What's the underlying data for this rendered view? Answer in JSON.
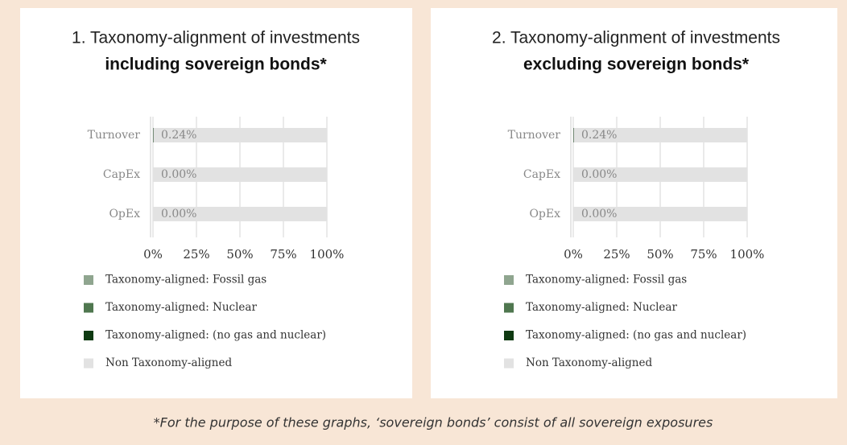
{
  "chart_data": [
    {
      "type": "bar",
      "orientation": "horizontal",
      "stacked": true,
      "title": "1. Taxonomy-alignment of investments",
      "subtitle": "including sovereign bonds*",
      "categories": [
        "Turnover",
        "CapEx",
        "OpEx"
      ],
      "series": [
        {
          "name": "Taxonomy-aligned: Fossil gas",
          "color": "#8fa58f",
          "values": [
            0,
            0,
            0
          ]
        },
        {
          "name": "Taxonomy-aligned: Nuclear",
          "color": "#4f774f",
          "values": [
            0,
            0,
            0
          ]
        },
        {
          "name": "Taxonomy-aligned: (no gas and nuclear)",
          "color": "#0f3a12",
          "values": [
            0.24,
            0,
            0
          ],
          "value_labels": [
            "0.24%",
            "0.00%",
            "0.00%"
          ]
        },
        {
          "name": "Non Taxonomy-aligned",
          "color": "#e2e2e2",
          "values": [
            99.76,
            100,
            100
          ]
        }
      ],
      "xlim": [
        0,
        100
      ],
      "xticks": [
        {
          "value": 0,
          "label": "0%"
        },
        {
          "value": 25,
          "label": "25%"
        },
        {
          "value": 50,
          "label": "50%"
        },
        {
          "value": 75,
          "label": "75%"
        },
        {
          "value": 100,
          "label": "100%"
        }
      ],
      "grid": true
    },
    {
      "type": "bar",
      "orientation": "horizontal",
      "stacked": true,
      "title": "2. Taxonomy-alignment of investments",
      "subtitle": "excluding sovereign bonds*",
      "categories": [
        "Turnover",
        "CapEx",
        "OpEx"
      ],
      "series": [
        {
          "name": "Taxonomy-aligned: Fossil gas",
          "color": "#8fa58f",
          "values": [
            0,
            0,
            0
          ]
        },
        {
          "name": "Taxonomy-aligned: Nuclear",
          "color": "#4f774f",
          "values": [
            0,
            0,
            0
          ]
        },
        {
          "name": "Taxonomy-aligned: (no gas and nuclear)",
          "color": "#0f3a12",
          "values": [
            0.24,
            0,
            0
          ],
          "value_labels": [
            "0.24%",
            "0.00%",
            "0.00%"
          ]
        },
        {
          "name": "Non Taxonomy-aligned",
          "color": "#e2e2e2",
          "values": [
            99.76,
            100,
            100
          ]
        }
      ],
      "xlim": [
        0,
        100
      ],
      "xticks": [
        {
          "value": 0,
          "label": "0%"
        },
        {
          "value": 25,
          "label": "25%"
        },
        {
          "value": 50,
          "label": "50%"
        },
        {
          "value": 75,
          "label": "75%"
        },
        {
          "value": 100,
          "label": "100%"
        }
      ],
      "grid": true
    }
  ],
  "footnote": "*For the purpose of these graphs, ‘sovereign bonds’ consist of all sovereign exposures"
}
